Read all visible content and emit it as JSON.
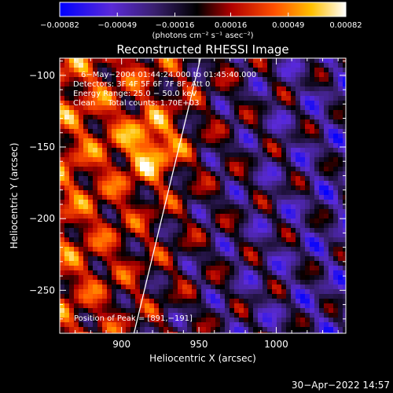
{
  "chart_data": {
    "type": "heatmap",
    "title": "Reconstructed RHESSI Image",
    "xlabel": "Heliocentric X (arcsec)",
    "ylabel": "Heliocentric Y (arcsec)",
    "xlim": [
      860,
      1045
    ],
    "ylim": [
      -280,
      -88
    ],
    "x_ticks": [
      900,
      950,
      1000
    ],
    "y_ticks": [
      -100,
      -150,
      -200,
      -250
    ],
    "x_tick_labels": [
      "900",
      "950",
      "1000"
    ],
    "y_tick_labels": [
      "−100",
      "−150",
      "−200",
      "−250"
    ],
    "colorbar": {
      "min": -0.00082,
      "max": 0.00082,
      "ticks": [
        -0.00082,
        -0.00049,
        -0.00016,
        0.00016,
        0.00049,
        0.00082
      ],
      "tick_labels": [
        "−0.00082",
        "−0.00049",
        "−0.00016",
        "0.00016",
        "0.00049",
        "0.00082"
      ],
      "unit_label": "(photons cm⁻² s⁻¹ asec⁻²)",
      "colormap": "blue-purple-black-red-orange-yellow-white"
    },
    "annotations": {
      "time_range": "6−May−2004 01:44:24.000 to 01:45:40.000",
      "detectors": "Detectors: 3F 4F 5F 6F 7F 8F, Att 0",
      "energy_range": "Energy Range: 25.0 − 50.0 keV",
      "clean_counts": "Clean     Total counts: 1.70E+03",
      "peak": "Position of Peak = [891,−191]"
    },
    "limb_line": {
      "x": [
        908,
        951
      ],
      "y": [
        -280,
        -88
      ]
    },
    "peak_position": [
      891,
      -191
    ]
  },
  "footer": {
    "timestamp": "30−Apr−2022 14:57"
  },
  "colors": {
    "background": "#000000",
    "text": "#ffffff"
  }
}
